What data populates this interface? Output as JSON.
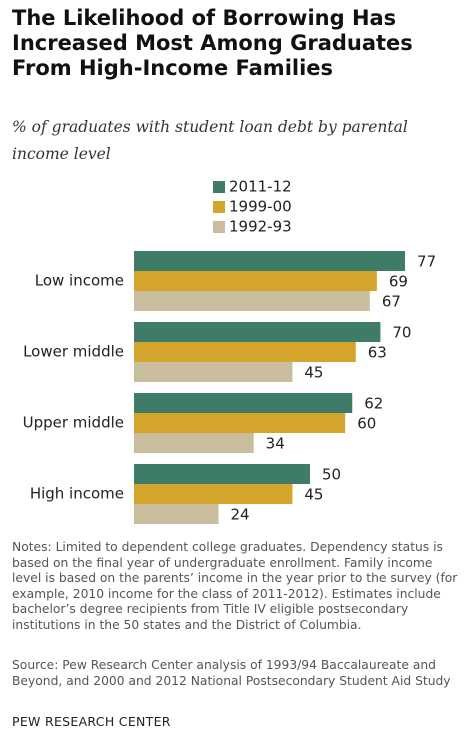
{
  "chart_data": {
    "type": "bar",
    "orientation": "horizontal",
    "title": "The Likelihood of Borrowing Has Increased Most Among Graduates From High-Income Families",
    "subtitle": "% of graduates with student loan debt by parental income level",
    "categories": [
      "Low income",
      "Lower middle",
      "Upper middle",
      "High income"
    ],
    "series": [
      {
        "name": "2011-12",
        "color": "#3e7b69",
        "values": [
          77,
          70,
          62,
          50
        ]
      },
      {
        "name": "1999-00",
        "color": "#d4a52c",
        "values": [
          69,
          63,
          60,
          45
        ]
      },
      {
        "name": "1992-93",
        "color": "#c9bd9d",
        "values": [
          67,
          45,
          34,
          24
        ]
      }
    ]
  },
  "notes": "Notes: Limited to dependent college graduates. Dependency status is based on the final year of undergraduate enrollment. Family income level is based on the parents’ income in the year prior to the survey (for example, 2010 income for the class of 2011-2012). Estimates include bachelor’s degree recipients from Title IV eligible postsecondary institutions in the 50 states and the District of Columbia.",
  "source": "Source: Pew Research Center analysis of 1993/94 Baccalaureate and Beyond, and 2000 and 2012 National Postsecondary Student Aid Study",
  "footer": "PEW RESEARCH CENTER"
}
